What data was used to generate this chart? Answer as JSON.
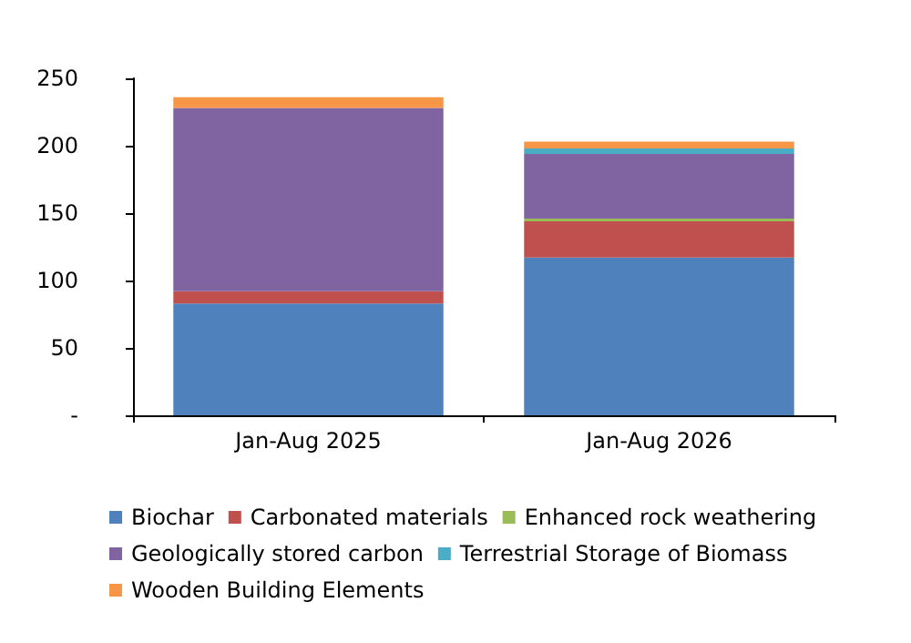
{
  "chart_data": {
    "type": "bar",
    "stacked": true,
    "categories": [
      "Jan-Aug 2025",
      "Jan-Aug 2026"
    ],
    "series": [
      {
        "name": "Biochar",
        "color": "#4f81bd",
        "values": [
          83,
          117
        ]
      },
      {
        "name": "Carbonated materials",
        "color": "#c0504d",
        "values": [
          9,
          27
        ]
      },
      {
        "name": "Enhanced rock weathering",
        "color": "#9bbb59",
        "values": [
          0,
          2
        ]
      },
      {
        "name": "Geologically stored carbon",
        "color": "#8064a2",
        "values": [
          136,
          48
        ]
      },
      {
        "name": "Terrestrial Storage of Biomass",
        "color": "#4bacc6",
        "values": [
          0,
          4
        ]
      },
      {
        "name": "Wooden Building Elements",
        "color": "#f79646",
        "values": [
          8,
          5
        ]
      }
    ],
    "ylim": [
      0,
      250
    ],
    "yticks": [
      {
        "value": 0,
        "label": "-"
      },
      50,
      100,
      150,
      200,
      250
    ],
    "grid": false,
    "legend": "bottom"
  }
}
